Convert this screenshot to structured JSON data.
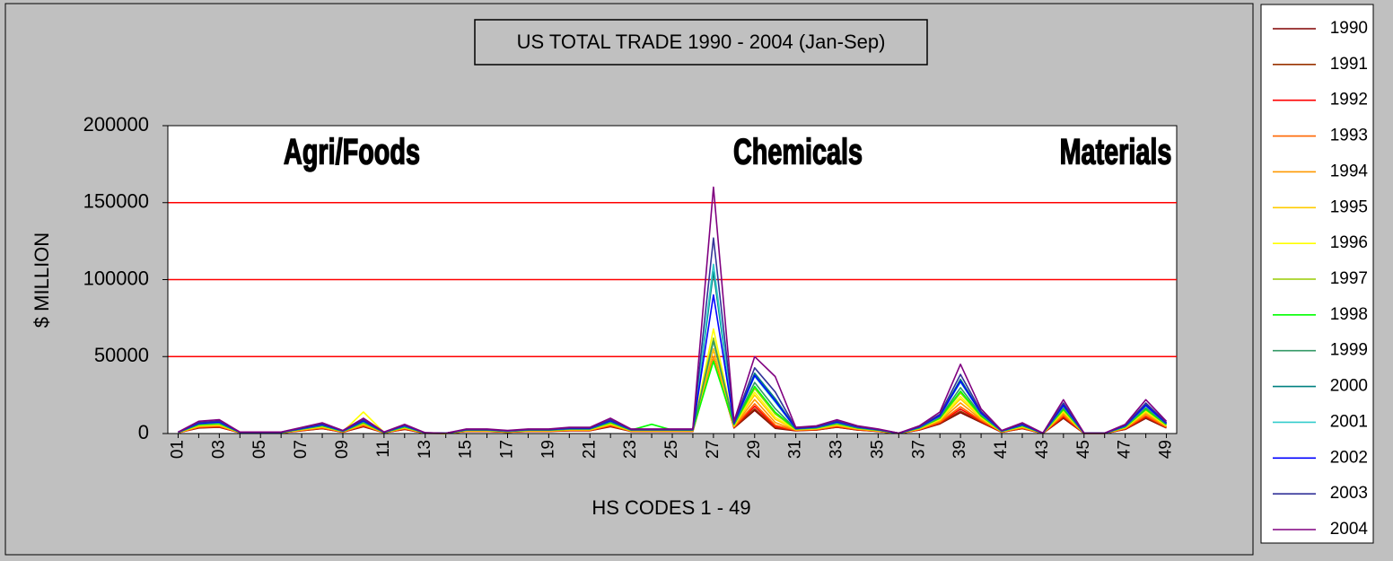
{
  "chart_data": {
    "type": "line",
    "title": "US TOTAL TRADE 1990 - 2004 (Jan-Sep)",
    "ylabel": "$ MILLION",
    "xlabel": "HS CODES 1 - 49",
    "annotations": [
      "Agri/Foods",
      "Chemicals",
      "Materials"
    ],
    "ylim": [
      0,
      200000
    ],
    "yticks": [
      0,
      50000,
      100000,
      150000,
      200000
    ],
    "grid": true,
    "grid_color": "#ff0000",
    "legend": "right",
    "categories": [
      "01",
      null,
      "03",
      null,
      "05",
      null,
      "07",
      null,
      "09",
      null,
      "11",
      null,
      "13",
      null,
      "15",
      null,
      "17",
      null,
      "19",
      null,
      "21",
      null,
      "23",
      null,
      "25",
      null,
      "27",
      null,
      "29",
      null,
      "31",
      null,
      "33",
      null,
      "35",
      null,
      "37",
      null,
      "39",
      null,
      "41",
      null,
      "43",
      null,
      "45",
      null,
      "47",
      null,
      "49"
    ],
    "series": [
      {
        "name": "1990",
        "color": "#800000",
        "values": [
          500,
          3600,
          4100,
          500,
          500,
          500,
          1800,
          3200,
          900,
          4500,
          500,
          2700,
          200,
          100,
          1400,
          1400,
          900,
          1400,
          1400,
          1800,
          1800,
          4500,
          1400,
          1400,
          1400,
          1400,
          55000,
          3600,
          15100,
          3400,
          1800,
          2300,
          4100,
          2300,
          1400,
          100,
          2300,
          6300,
          13600,
          7200,
          900,
          3200,
          100,
          9900,
          100,
          100,
          2700,
          9900,
          3600
        ]
      },
      {
        "name": "1991",
        "color": "#993300",
        "values": [
          500,
          3800,
          4200,
          500,
          500,
          500,
          1900,
          3300,
          900,
          4700,
          500,
          2800,
          200,
          100,
          1400,
          1400,
          900,
          1400,
          1400,
          1900,
          1900,
          4700,
          1400,
          1400,
          1400,
          1400,
          50000,
          3800,
          16100,
          3800,
          1900,
          2400,
          4200,
          2400,
          1400,
          100,
          2400,
          6600,
          14500,
          7500,
          900,
          3300,
          100,
          10300,
          100,
          100,
          2800,
          10300,
          3800
        ]
      },
      {
        "name": "1992",
        "color": "#ff0000",
        "values": [
          500,
          4000,
          4500,
          500,
          500,
          500,
          2000,
          3500,
          1000,
          5000,
          500,
          3000,
          300,
          100,
          1500,
          1500,
          1000,
          1500,
          1500,
          2000,
          2000,
          5000,
          1500,
          1500,
          1500,
          1500,
          50000,
          4000,
          17700,
          4600,
          2000,
          2500,
          4500,
          2500,
          1500,
          200,
          2500,
          7000,
          15900,
          8000,
          1000,
          3500,
          200,
          11000,
          200,
          200,
          3000,
          11000,
          4000
        ]
      },
      {
        "name": "1993",
        "color": "#ff6600",
        "values": [
          500,
          4200,
          4800,
          500,
          500,
          500,
          2100,
          3700,
          1100,
          5300,
          500,
          3200,
          300,
          100,
          1600,
          1600,
          1100,
          1600,
          1600,
          2100,
          2100,
          5300,
          1600,
          1600,
          1600,
          1600,
          49000,
          4200,
          19300,
          5500,
          2100,
          2700,
          4800,
          2700,
          1600,
          200,
          2700,
          7400,
          17400,
          8500,
          1100,
          3700,
          200,
          11700,
          200,
          200,
          3200,
          11700,
          4200
        ]
      },
      {
        "name": "1994",
        "color": "#ff9900",
        "values": [
          600,
          4600,
          5200,
          600,
          600,
          600,
          2300,
          4100,
          1200,
          5800,
          600,
          3500,
          300,
          100,
          1700,
          1700,
          1200,
          1700,
          1700,
          2300,
          2300,
          5800,
          1700,
          1700,
          1700,
          1700,
          50000,
          4600,
          22100,
          7200,
          2300,
          2900,
          5200,
          2900,
          1700,
          200,
          2900,
          8100,
          19900,
          9300,
          1200,
          4100,
          200,
          12800,
          200,
          200,
          3500,
          12800,
          4600
        ]
      },
      {
        "name": "1995",
        "color": "#ffcc00",
        "values": [
          600,
          5000,
          5700,
          600,
          600,
          600,
          2500,
          4400,
          1300,
          6300,
          600,
          3800,
          300,
          100,
          1900,
          1900,
          1300,
          1900,
          1900,
          2500,
          2500,
          6300,
          1900,
          1900,
          1900,
          1900,
          55000,
          5000,
          25000,
          9300,
          2500,
          3200,
          5700,
          3200,
          1900,
          200,
          3200,
          8800,
          22500,
          10100,
          1300,
          4400,
          200,
          13900,
          200,
          200,
          3800,
          13900,
          5000
        ]
      },
      {
        "name": "1996",
        "color": "#ffff00",
        "values": [
          700,
          5300,
          5900,
          700,
          700,
          700,
          2600,
          4600,
          1300,
          14000,
          700,
          4000,
          300,
          100,
          2000,
          2000,
          1300,
          2000,
          2000,
          2600,
          2600,
          6600,
          2000,
          2000,
          2000,
          2000,
          68000,
          5300,
          26800,
          10600,
          2600,
          3300,
          5900,
          3300,
          2000,
          200,
          3300,
          9200,
          24100,
          10600,
          1300,
          4600,
          200,
          14500,
          200,
          200,
          4000,
          14500,
          5300
        ]
      },
      {
        "name": "1997",
        "color": "#99cc00",
        "values": [
          700,
          5600,
          6300,
          700,
          700,
          700,
          2800,
          4900,
          1400,
          7000,
          700,
          4200,
          400,
          100,
          2100,
          2100,
          1400,
          2100,
          2100,
          2800,
          2800,
          7000,
          2100,
          2100,
          2100,
          2100,
          62000,
          5600,
          29300,
          12700,
          2800,
          3500,
          6300,
          3500,
          2100,
          200,
          3500,
          9800,
          26400,
          11200,
          1400,
          4900,
          200,
          15400,
          200,
          200,
          4200,
          15400,
          5600
        ]
      },
      {
        "name": "1998",
        "color": "#00ff00",
        "values": [
          700,
          5800,
          6500,
          700,
          700,
          700,
          2900,
          5000,
          1400,
          7200,
          700,
          4300,
          400,
          100,
          2200,
          2200,
          1400,
          2200,
          2200,
          2900,
          2900,
          7200,
          2200,
          6000,
          2200,
          2200,
          47000,
          5800,
          30600,
          13800,
          2900,
          3600,
          6500,
          3600,
          2200,
          200,
          3600,
          10100,
          27500,
          11500,
          1400,
          5000,
          200,
          15800,
          200,
          200,
          4300,
          15800,
          5800
        ]
      },
      {
        "name": "1999",
        "color": "#339966",
        "values": [
          800,
          6100,
          6800,
          800,
          800,
          800,
          3000,
          5300,
          1500,
          7600,
          800,
          4600,
          400,
          200,
          2300,
          2300,
          1500,
          2300,
          2300,
          3000,
          3000,
          7600,
          2300,
          2300,
          2300,
          2300,
          60000,
          6100,
          33200,
          16200,
          3000,
          3800,
          6800,
          3800,
          2300,
          200,
          3800,
          10600,
          29800,
          12200,
          1500,
          5300,
          200,
          16700,
          200,
          200,
          4600,
          16700,
          6100
        ]
      },
      {
        "name": "2000",
        "color": "#008080",
        "values": [
          900,
          6800,
          7700,
          900,
          900,
          900,
          3400,
          6000,
          1700,
          8500,
          900,
          5100,
          400,
          200,
          2600,
          2600,
          1700,
          2600,
          2600,
          3400,
          3400,
          8500,
          2600,
          2600,
          2600,
          2600,
          105000,
          6800,
          39200,
          22700,
          3400,
          4300,
          7700,
          4300,
          2600,
          300,
          4300,
          11900,
          35300,
          13600,
          1700,
          6000,
          300,
          18700,
          300,
          300,
          5100,
          18700,
          6800
        ]
      },
      {
        "name": "2001",
        "color": "#33cccc",
        "values": [
          800,
          6600,
          7400,
          800,
          800,
          800,
          3300,
          5700,
          1600,
          8200,
          800,
          4900,
          400,
          200,
          2500,
          2500,
          1600,
          2500,
          2500,
          3300,
          3300,
          8200,
          2500,
          2500,
          2500,
          2500,
          110000,
          6600,
          37200,
          20400,
          3300,
          4100,
          7400,
          4100,
          2500,
          200,
          4100,
          11500,
          33400,
          13100,
          1600,
          5700,
          200,
          18000,
          200,
          200,
          4900,
          18000,
          6600
        ]
      },
      {
        "name": "2002",
        "color": "#0000ff",
        "values": [
          800,
          6600,
          7500,
          800,
          800,
          800,
          3300,
          5800,
          1700,
          8300,
          800,
          5000,
          400,
          200,
          2500,
          2500,
          1700,
          2500,
          2500,
          3300,
          3300,
          8300,
          2500,
          2500,
          2500,
          2500,
          90000,
          6600,
          37800,
          21200,
          3300,
          4200,
          7500,
          4200,
          2500,
          200,
          4200,
          11600,
          34000,
          13300,
          1700,
          5800,
          200,
          18300,
          200,
          200,
          5000,
          18300,
          6600
        ]
      },
      {
        "name": "2003",
        "color": "#333399",
        "values": [
          900,
          7200,
          8100,
          900,
          900,
          900,
          3600,
          6300,
          1800,
          9000,
          900,
          5400,
          500,
          200,
          2700,
          2700,
          1800,
          2700,
          2700,
          3600,
          3600,
          9000,
          2700,
          2700,
          2700,
          2700,
          127000,
          7200,
          42700,
          27000,
          3600,
          4500,
          8100,
          4500,
          2700,
          300,
          4500,
          12600,
          38400,
          14400,
          1800,
          6300,
          300,
          19800,
          300,
          300,
          5400,
          19800,
          7200
        ]
      },
      {
        "name": "2004",
        "color": "#800080",
        "values": [
          1000,
          8000,
          9000,
          1000,
          1000,
          1000,
          4000,
          7000,
          2000,
          10000,
          1000,
          6000,
          500,
          200,
          3000,
          3000,
          2000,
          3000,
          3000,
          4000,
          4000,
          10000,
          3000,
          3000,
          3000,
          3000,
          160000,
          8000,
          50000,
          37000,
          4000,
          5000,
          9000,
          5000,
          3000,
          300,
          5000,
          14000,
          45000,
          16000,
          2000,
          7000,
          300,
          22000,
          300,
          300,
          6000,
          22000,
          8000
        ]
      }
    ]
  }
}
